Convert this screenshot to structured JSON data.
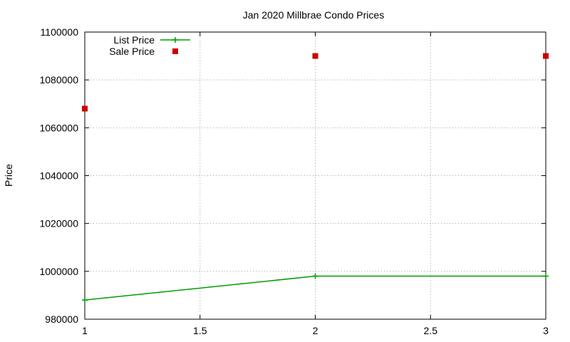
{
  "chart_data": {
    "type": "line",
    "title": "Jan 2020 Millbrae Condo Prices",
    "xlabel": "",
    "ylabel": "Price",
    "xlim": [
      1,
      3
    ],
    "ylim": [
      980000,
      1100000
    ],
    "x_ticks": [
      1,
      1.5,
      2,
      2.5,
      3
    ],
    "y_ticks": [
      980000,
      1000000,
      1020000,
      1040000,
      1060000,
      1080000,
      1100000
    ],
    "grid": true,
    "legend_position": "top-left",
    "series": [
      {
        "name": "List Price",
        "style": "linespoints",
        "marker": "plus",
        "color": "#009e00",
        "points": [
          {
            "x": 1,
            "y": 988000
          },
          {
            "x": 2,
            "y": 998000
          },
          {
            "x": 3,
            "y": 998000
          }
        ]
      },
      {
        "name": "Sale Price",
        "style": "points",
        "marker": "square",
        "color": "#cc0000",
        "points": [
          {
            "x": 1,
            "y": 1068000
          },
          {
            "x": 2,
            "y": 1090000
          },
          {
            "x": 3,
            "y": 1090000
          }
        ]
      }
    ]
  }
}
